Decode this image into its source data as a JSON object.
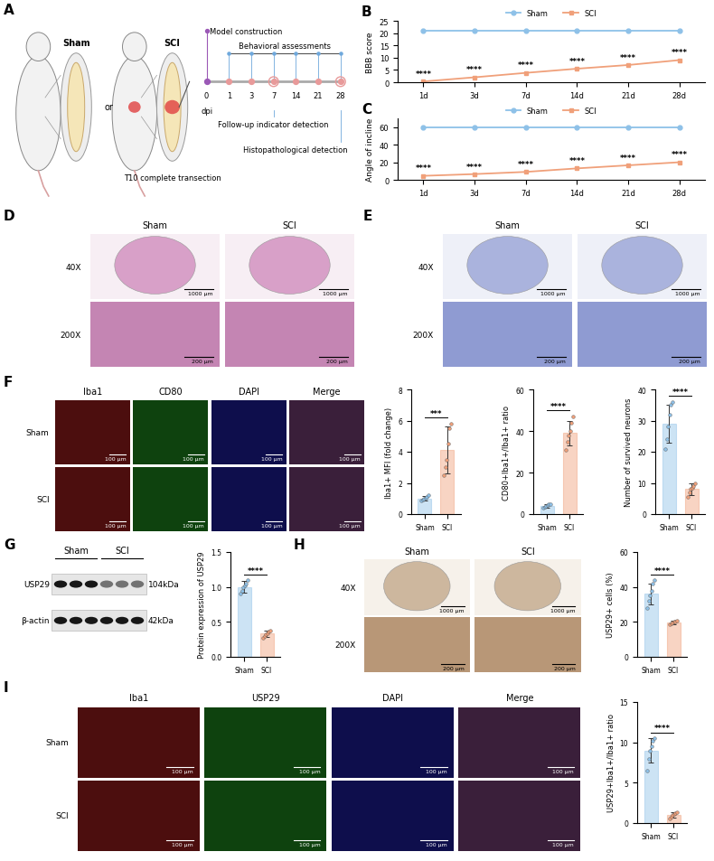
{
  "schematic": {
    "panel": "A",
    "groups": [
      "Sham",
      "SCI"
    ],
    "connector": "or",
    "injury_label": "T10 complete transection",
    "timeline": {
      "title": "Model construction",
      "unit": "dpi",
      "days": [
        0,
        1,
        3,
        7,
        14,
        21,
        28
      ],
      "behavior_label": "Behavioral assessments",
      "followup": {
        "label": "Follow-up indicator detection",
        "day": 7
      },
      "histology": {
        "label": "Histopathological detection",
        "day": 28
      }
    }
  },
  "chart_data": [
    {
      "panel": "B",
      "type": "line",
      "y_label": "BBB score",
      "categories": [
        "1d",
        "3d",
        "7d",
        "14d",
        "21d",
        "28d"
      ],
      "ylim": [
        0,
        25
      ],
      "yticks": [
        0,
        5,
        10,
        15,
        20,
        25
      ],
      "legend": "upper center",
      "series": [
        {
          "name": "Sham",
          "color": "#8ec1e8",
          "marker": "circle",
          "values": [
            21,
            21,
            21,
            21,
            21,
            21
          ]
        },
        {
          "name": "SCI",
          "color": "#f0a07a",
          "marker": "square",
          "values": [
            0.3,
            2.0,
            3.8,
            5.5,
            7.0,
            9.0
          ],
          "annotations": [
            "****",
            "****",
            "****",
            "****",
            "****",
            "****"
          ]
        }
      ]
    },
    {
      "panel": "C",
      "type": "line",
      "y_label": "Angle of incline",
      "categories": [
        "1d",
        "3d",
        "7d",
        "14d",
        "21d",
        "28d"
      ],
      "ylim": [
        0,
        70
      ],
      "yticks": [
        0,
        20,
        40,
        60
      ],
      "legend": "upper center",
      "series": [
        {
          "name": "Sham",
          "color": "#8ec1e8",
          "marker": "circle",
          "values": [
            60,
            60,
            60,
            60,
            60,
            60
          ]
        },
        {
          "name": "SCI",
          "color": "#f0a07a",
          "marker": "square",
          "values": [
            4.5,
            6.5,
            9.0,
            13.0,
            16.5,
            20.0
          ],
          "annotations": [
            "****",
            "****",
            "****",
            "****",
            "****",
            "****"
          ]
        }
      ]
    },
    {
      "type": "bar",
      "y_label": "Iba1+ MFI (fold change)",
      "categories": [
        "Sham",
        "SCI"
      ],
      "values": [
        1.0,
        4.1
      ],
      "errors": [
        0.15,
        1.5
      ],
      "points": [
        [
          0.85,
          0.95,
          1.0,
          1.05,
          1.1,
          1.2
        ],
        [
          2.5,
          3.0,
          3.5,
          4.5,
          5.5,
          5.8
        ]
      ],
      "colors": [
        "#8ec1e8",
        "#f0a07a"
      ],
      "significance": "***",
      "ylim": [
        0,
        8
      ],
      "yticks": [
        0,
        2,
        4,
        6,
        8
      ]
    },
    {
      "type": "bar",
      "y_label": "CD80+Iba1+/Iba1+ ratio",
      "categories": [
        "Sham",
        "SCI"
      ],
      "values": [
        4.0,
        39.0
      ],
      "errors": [
        1.0,
        6.0
      ],
      "points": [
        [
          3.0,
          3.5,
          4.0,
          4.2,
          4.8,
          5.0
        ],
        [
          31,
          35,
          38,
          40,
          44,
          47
        ]
      ],
      "colors": [
        "#8ec1e8",
        "#f0a07a"
      ],
      "significance": "****",
      "ylim": [
        0,
        60
      ],
      "yticks": [
        0,
        20,
        40,
        60
      ]
    },
    {
      "type": "bar",
      "y_label": "Number of survived neurons",
      "categories": [
        "Sham",
        "SCI"
      ],
      "values": [
        29.0,
        8.0
      ],
      "errors": [
        6.0,
        1.8
      ],
      "points": [
        [
          21,
          24,
          28,
          32,
          35,
          36
        ],
        [
          5.5,
          7.0,
          8.0,
          8.5,
          9.0,
          10.0
        ]
      ],
      "colors": [
        "#8ec1e8",
        "#f0a07a"
      ],
      "significance": "****",
      "ylim": [
        0,
        40
      ],
      "yticks": [
        0,
        10,
        20,
        30,
        40
      ]
    },
    {
      "type": "bar",
      "y_label": "Protein expression of USP29",
      "categories": [
        "Sham",
        "SCI"
      ],
      "values": [
        1.0,
        0.33
      ],
      "errors": [
        0.08,
        0.05
      ],
      "points": [
        [
          0.9,
          0.95,
          1.0,
          1.02,
          1.05,
          1.1
        ],
        [
          0.27,
          0.3,
          0.32,
          0.34,
          0.36,
          0.38
        ]
      ],
      "colors": [
        "#8ec1e8",
        "#f0a07a"
      ],
      "significance": "****",
      "ylim": [
        0,
        1.5
      ],
      "yticks": [
        {
          "value": 0,
          "label": "0.0"
        },
        0.5,
        1.0,
        1.5
      ]
    },
    {
      "type": "bar",
      "y_label": "USP29+ cells (%)",
      "categories": [
        "Sham",
        "SCI"
      ],
      "values": [
        36.0,
        19.5
      ],
      "errors": [
        6.0,
        1.0
      ],
      "points": [
        [
          28,
          32,
          35,
          38,
          42,
          44
        ],
        [
          18.5,
          19.0,
          19.5,
          20.0,
          20.0,
          20.5
        ]
      ],
      "colors": [
        "#8ec1e8",
        "#f0a07a"
      ],
      "significance": "****",
      "ylim": [
        0,
        60
      ],
      "yticks": [
        0,
        20,
        40,
        60
      ]
    },
    {
      "type": "bar",
      "y_label": "USP29+Iba1+/Iba1+ ratio",
      "categories": [
        "Sham",
        "SCI"
      ],
      "values": [
        9.0,
        1.0
      ],
      "errors": [
        1.5,
        0.3
      ],
      "points": [
        [
          6.5,
          8.0,
          9.0,
          9.5,
          10.2,
          10.5
        ],
        [
          0.6,
          0.8,
          1.0,
          1.1,
          1.2,
          1.3
        ]
      ],
      "colors": [
        "#8ec1e8",
        "#f0a07a"
      ],
      "significance": "****",
      "ylim": [
        0,
        15
      ],
      "yticks": [
        0,
        5,
        10,
        15
      ]
    }
  ],
  "blot": {
    "panel": "G",
    "groups": [
      "Sham",
      "SCI"
    ],
    "lanes_per_group": 3,
    "bands": [
      {
        "name": "USP29",
        "size": "104kDa"
      },
      {
        "name": "β-actin",
        "size": "42kDa"
      }
    ]
  },
  "image_panels": [
    {
      "panel": "D",
      "columns": [
        "Sham",
        "SCI"
      ],
      "rows": [
        "40X",
        "200X"
      ],
      "scale_bars": [
        "1000 μm",
        "200 μm"
      ]
    },
    {
      "panel": "E",
      "columns": [
        "Sham",
        "SCI"
      ],
      "rows": [
        "40X",
        "200X"
      ],
      "scale_bars": [
        "1000 μm",
        "200 μm"
      ]
    },
    {
      "panel": "F",
      "columns": [
        "Iba1",
        "CD80",
        "DAPI",
        "Merge"
      ],
      "rows": [
        "Sham",
        "SCI"
      ],
      "scale_bars": [
        "100 μm",
        "100 μm"
      ]
    },
    {
      "panel": "H",
      "columns": [
        "Sham",
        "SCI"
      ],
      "rows": [
        "40X",
        "200X"
      ],
      "scale_bars": [
        "1000 μm",
        "200 μm"
      ]
    },
    {
      "panel": "I",
      "columns": [
        "Iba1",
        "USP29",
        "DAPI",
        "Merge"
      ],
      "rows": [
        "Sham",
        "SCI"
      ],
      "scale_bars": [
        "100 μm",
        "100 μm"
      ]
    }
  ]
}
